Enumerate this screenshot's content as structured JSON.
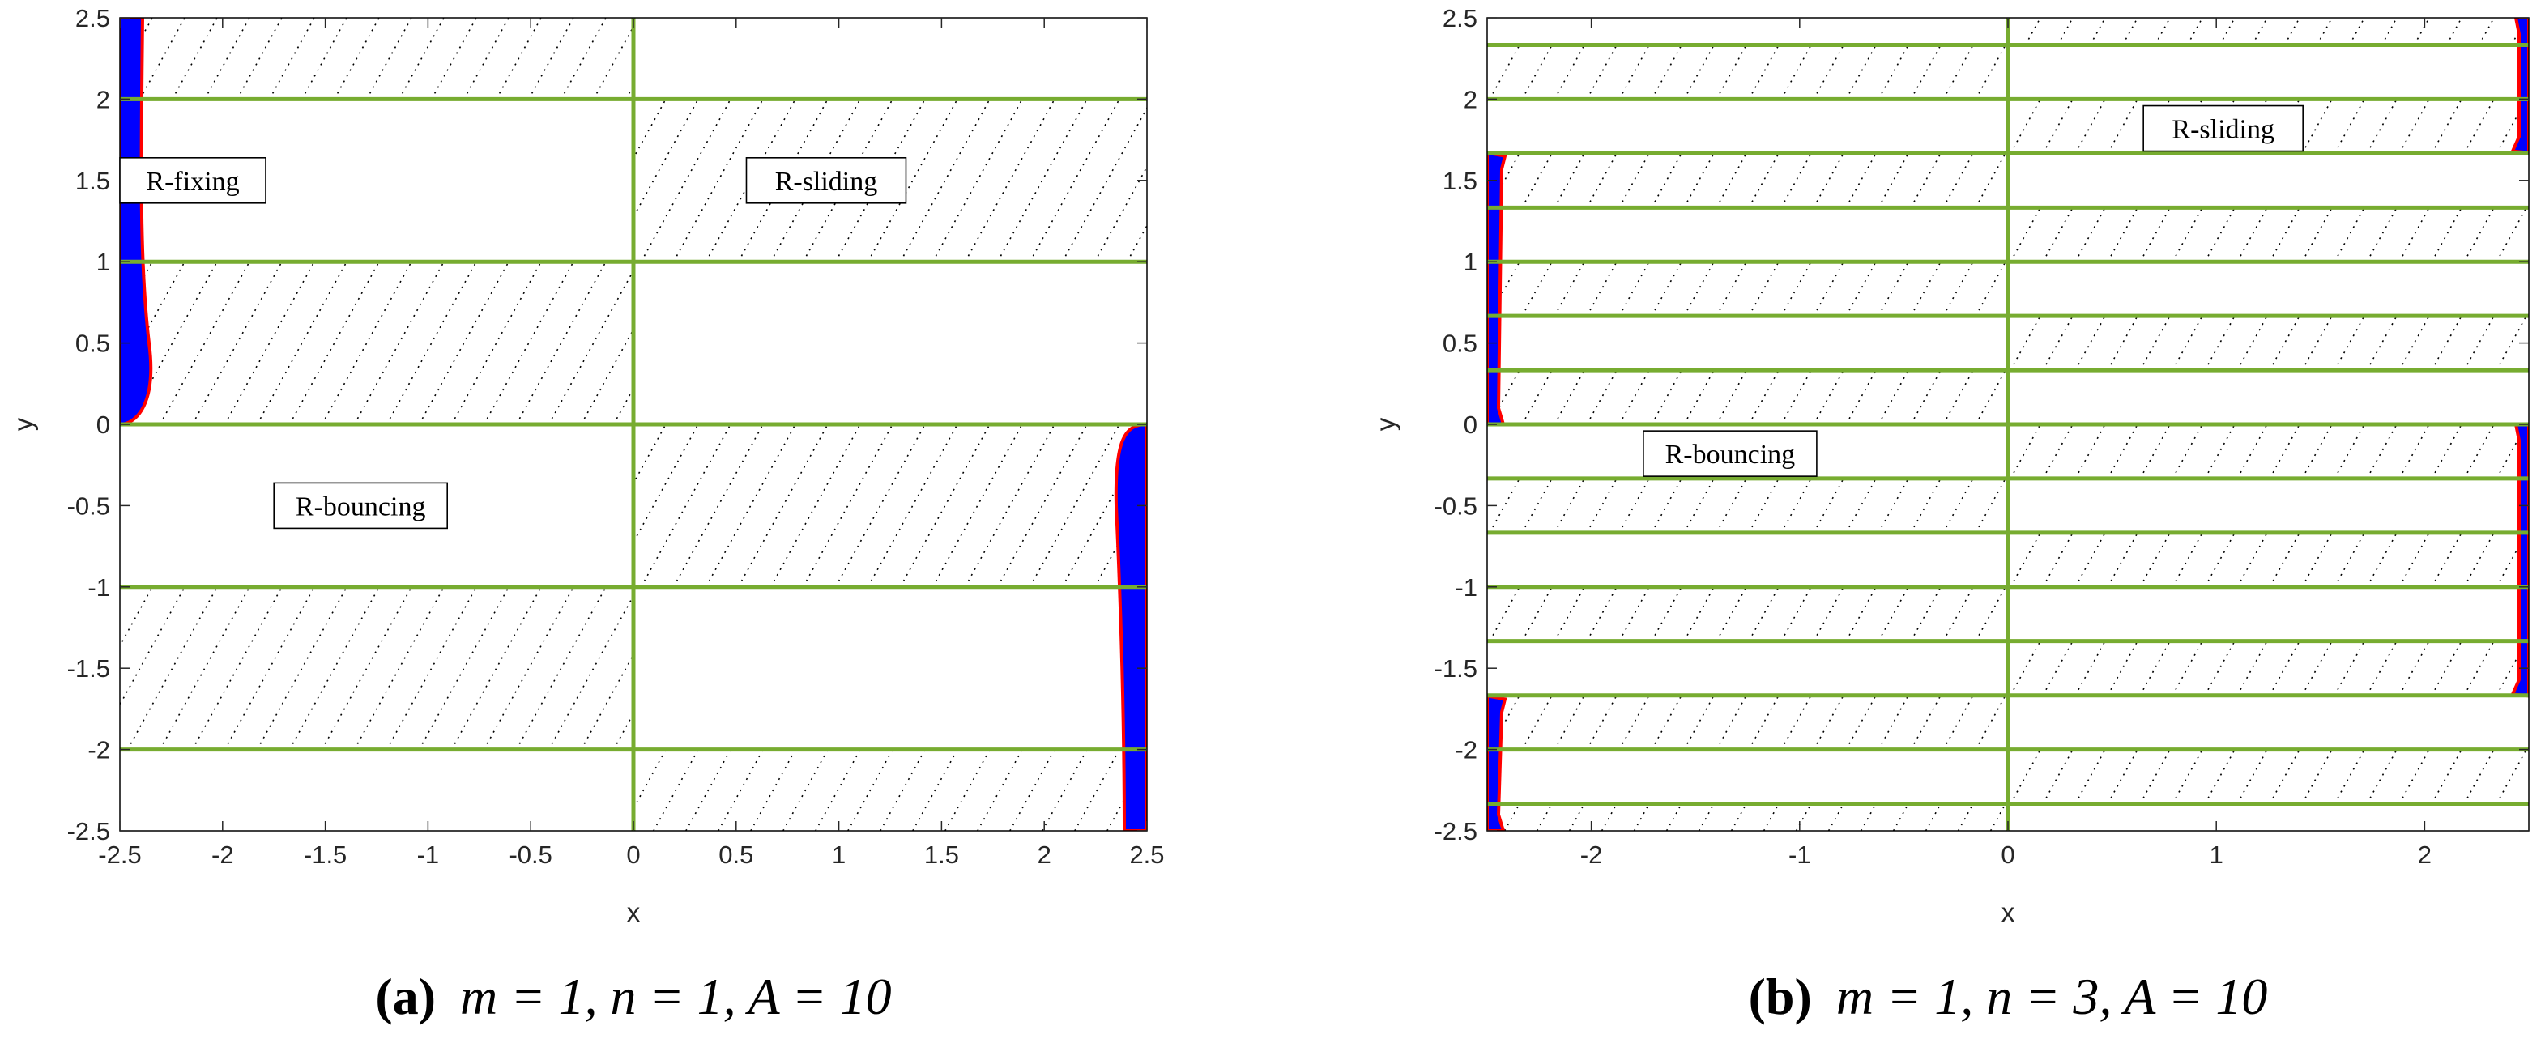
{
  "figure": {
    "panels": [
      {
        "id": "a",
        "caption": {
          "tag": "(a)",
          "formula": "m = 1, n = 1, A = 10"
        },
        "chart_data": {
          "type": "region-map",
          "xlabel": "x",
          "ylabel": "y",
          "xlim": [
            -2.5,
            2.5
          ],
          "ylim": [
            -2.5,
            2.5
          ],
          "xticks": [
            -2.5,
            -2,
            -1.5,
            -1,
            -0.5,
            0,
            0.5,
            1,
            1.5,
            2,
            2.5
          ],
          "xtick_labels": [
            "-2.5",
            "-2",
            "-1.5",
            "-1",
            "-0.5",
            "0",
            "0.5",
            "1",
            "1.5",
            "2",
            "2.5"
          ],
          "yticks": [
            2.5,
            2,
            1.5,
            1,
            0.5,
            0,
            -0.5,
            -1,
            -1.5,
            -2,
            -2.5
          ],
          "ytick_labels": [
            "2.5",
            "2",
            "1.5",
            "1",
            "0.5",
            "0",
            "-0.5",
            "-1",
            "-1.5",
            "-2",
            "-2.5"
          ],
          "green_horizontal_lines_y": [
            2,
            1,
            0,
            -1,
            -2
          ],
          "green_vertical_line_x": 0,
          "hatched_bands": [
            {
              "x": [
                -2.5,
                0
              ],
              "y": [
                2,
                2.5
              ]
            },
            {
              "x": [
                -2.5,
                0
              ],
              "y": [
                0,
                1
              ]
            },
            {
              "x": [
                -2.5,
                0
              ],
              "y": [
                -2,
                -1
              ]
            },
            {
              "x": [
                0,
                2.5
              ],
              "y": [
                1,
                2
              ]
            },
            {
              "x": [
                0,
                2.5
              ],
              "y": [
                -1,
                0
              ]
            },
            {
              "x": [
                0,
                2.5
              ],
              "y": [
                -2.5,
                -2
              ]
            }
          ],
          "blue_regions": [
            {
              "side": "left",
              "y": [
                0,
                2.5
              ],
              "width_at_top": 0.12,
              "width_at_bottom": 0.2
            },
            {
              "side": "right",
              "y": [
                -2.5,
                0
              ],
              "width_at_top": 0.15,
              "width_at_bottom": 0.12
            }
          ],
          "annotations": [
            {
              "text": "R-fixing",
              "x": -2.5,
              "y": 1.5
            },
            {
              "text": "R-sliding",
              "x": 0.55,
              "y": 1.5
            },
            {
              "text": "R-bouncing",
              "x": -1.75,
              "y": -0.5
            }
          ]
        }
      },
      {
        "id": "b",
        "caption": {
          "tag": "(b)",
          "formula": "m = 1, n = 3, A = 10"
        },
        "chart_data": {
          "type": "region-map",
          "xlabel": "x",
          "ylabel": "y",
          "xlim": [
            -2.5,
            2.5
          ],
          "ylim": [
            -2.5,
            2.5
          ],
          "xticks": [
            -2,
            -1,
            0,
            1,
            2
          ],
          "xtick_labels": [
            "-2",
            "-1",
            "0",
            "1",
            "2"
          ],
          "yticks": [
            2.5,
            2,
            1.5,
            1,
            0.5,
            0,
            -0.5,
            -1,
            -1.5,
            -2,
            -2.5
          ],
          "ytick_labels": [
            "2.5",
            "2",
            "1.5",
            "1",
            "0.5",
            "0",
            "-0.5",
            "-1",
            "-1.5",
            "-2",
            "-2.5"
          ],
          "green_horizontal_lines_y": [
            2.333,
            2,
            1.667,
            1.333,
            1,
            0.667,
            0.333,
            0,
            -0.333,
            -0.667,
            -1,
            -1.333,
            -1.667,
            -2,
            -2.333
          ],
          "green_vertical_line_x": 0,
          "blue_regions": [
            {
              "side": "right",
              "y": [
                1.67,
                2.5
              ]
            },
            {
              "side": "left",
              "y": [
                0,
                1.67
              ]
            },
            {
              "side": "right",
              "y": [
                -1.67,
                0
              ]
            },
            {
              "side": "left",
              "y": [
                -2.5,
                -1.67
              ]
            }
          ],
          "annotations": [
            {
              "text": "R-sliding",
              "x": 0.65,
              "y": 1.82
            },
            {
              "text": "R-bouncing",
              "x": -1.75,
              "y": -0.18
            }
          ]
        }
      }
    ]
  }
}
